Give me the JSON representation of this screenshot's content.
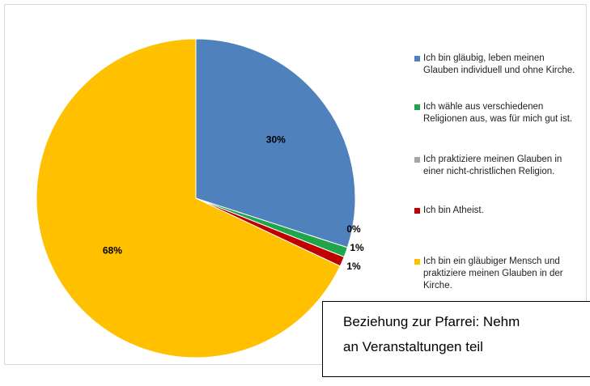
{
  "chart_data": {
    "type": "pie",
    "categories": [
      "Ich bin gläubig, leben meinen Glauben individuell und ohne Kirche.",
      "Ich wähle aus verschiedenen Religionen aus, was für mich gut ist.",
      "Ich praktiziere meinen Glauben in einer nicht-christlichen Religion.",
      "Ich bin Atheist.",
      "Ich bin ein gläubiger Mensch und praktiziere meinen Glauben in der Kirche."
    ],
    "values": [
      30,
      1,
      0,
      1,
      68
    ],
    "value_labels": [
      "30%",
      "1%",
      "0%",
      "1%",
      "68%"
    ],
    "colors": [
      "#4f81bd",
      "#1fa64a",
      "#a5a5a5",
      "#c00000",
      "#ffc000"
    ],
    "legend": "right",
    "annotation": [
      "Beziehung zur Pfarrei: Nehm",
      "an Veranstaltungen teil"
    ]
  }
}
